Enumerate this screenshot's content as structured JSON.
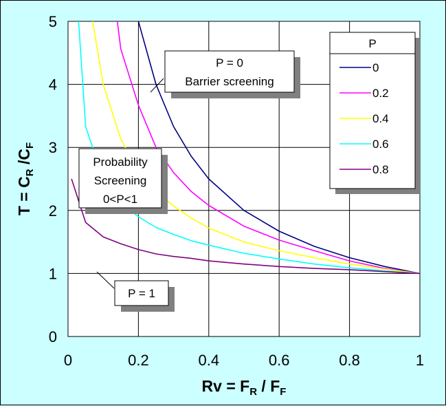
{
  "chart_data": {
    "type": "line",
    "xlabel": {
      "main": "Rv  =  F",
      "sub1": "R",
      "mid": " / F",
      "sub2": "F"
    },
    "ylabel": {
      "main": "T  =  C",
      "sub1": "R",
      "mid": " /C",
      "sub2": "F"
    },
    "xlim": [
      0,
      1
    ],
    "ylim": [
      0,
      5
    ],
    "xticks": [
      "0",
      "0.2",
      "0.4",
      "0.6",
      "0.8",
      "1"
    ],
    "yticks": [
      "0",
      "1",
      "2",
      "3",
      "4",
      "5"
    ],
    "grid": true,
    "legend": {
      "title": "P",
      "position": "top-right"
    },
    "series": [
      {
        "name": "0",
        "color": "#000080",
        "x": [
          0.2,
          0.25,
          0.3,
          0.35,
          0.4,
          0.5,
          0.6,
          0.7,
          0.8,
          0.9,
          1.0
        ],
        "y": [
          5.0,
          4.0,
          3.33,
          2.86,
          2.5,
          2.0,
          1.67,
          1.43,
          1.25,
          1.11,
          1.0
        ]
      },
      {
        "name": "0.2",
        "color": "#ff00ff",
        "x": [
          0.14,
          0.15,
          0.2,
          0.25,
          0.3,
          0.35,
          0.4,
          0.5,
          0.6,
          0.7,
          0.8,
          0.9,
          1.0
        ],
        "y": [
          5.0,
          4.56,
          3.67,
          3.0,
          2.6,
          2.3,
          2.08,
          1.75,
          1.53,
          1.36,
          1.2,
          1.08,
          1.0
        ]
      },
      {
        "name": "0.4",
        "color": "#ffff00",
        "x": [
          0.07,
          0.1,
          0.15,
          0.2,
          0.25,
          0.3,
          0.35,
          0.4,
          0.5,
          0.6,
          0.7,
          0.8,
          0.9,
          1.0
        ],
        "y": [
          5.0,
          4.0,
          3.13,
          2.62,
          2.3,
          2.07,
          1.88,
          1.72,
          1.5,
          1.36,
          1.25,
          1.15,
          1.07,
          1.0
        ]
      },
      {
        "name": "0.6",
        "color": "#00ffff",
        "x": [
          0.03,
          0.05,
          0.1,
          0.15,
          0.2,
          0.25,
          0.3,
          0.35,
          0.4,
          0.5,
          0.6,
          0.7,
          0.8,
          0.9,
          1.0
        ],
        "y": [
          5.0,
          3.33,
          2.5,
          2.13,
          1.9,
          1.73,
          1.62,
          1.52,
          1.45,
          1.32,
          1.23,
          1.15,
          1.09,
          1.04,
          1.0
        ]
      },
      {
        "name": "0.8",
        "color": "#800080",
        "x": [
          0.01,
          0.05,
          0.1,
          0.15,
          0.2,
          0.25,
          0.3,
          0.35,
          0.4,
          0.5,
          0.6,
          0.7,
          0.8,
          0.9,
          1.0
        ],
        "y": [
          2.5,
          1.81,
          1.58,
          1.47,
          1.38,
          1.31,
          1.27,
          1.24,
          1.2,
          1.15,
          1.11,
          1.08,
          1.06,
          1.03,
          1.0
        ]
      }
    ],
    "annotations": [
      {
        "id": "p0",
        "lines": [
          "P = 0",
          "Barrier screening"
        ]
      },
      {
        "id": "prob",
        "lines": [
          "Probability",
          "Screening",
          "0<P<1"
        ]
      },
      {
        "id": "p1",
        "lines": [
          "P = 1"
        ]
      }
    ]
  }
}
